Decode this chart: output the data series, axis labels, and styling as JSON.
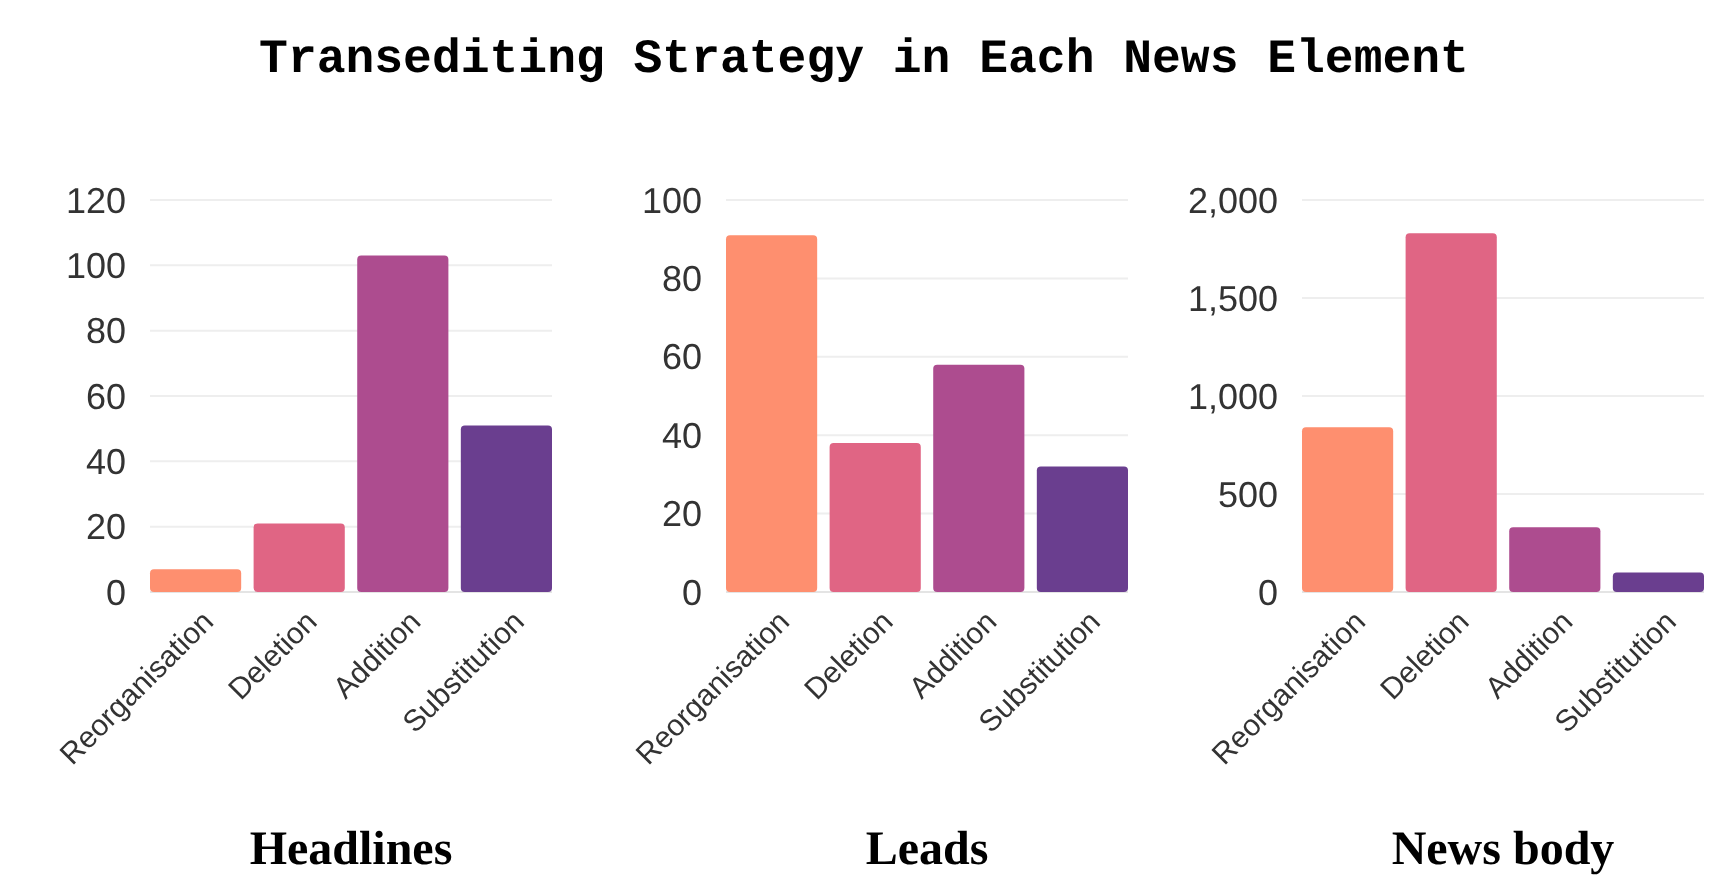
{
  "chart_data": [
    {
      "type": "bar",
      "title": "Transediting Strategy in Each News Element",
      "xlabel": "Headlines",
      "categories": [
        "Reorganisation",
        "Deletion",
        "Addition",
        "Substitution"
      ],
      "values": [
        7,
        21,
        103,
        51
      ],
      "colors": [
        "#fe8f6f",
        "#e06584",
        "#ad4c8f",
        "#6a3e8f"
      ],
      "ylim": [
        0,
        120
      ],
      "yticks": [
        0,
        20,
        40,
        60,
        80,
        100,
        120
      ],
      "grid": "y"
    },
    {
      "type": "bar",
      "xlabel": "Leads",
      "categories": [
        "Reorganisation",
        "Deletion",
        "Addition",
        "Substitution"
      ],
      "values": [
        91,
        38,
        58,
        32
      ],
      "colors": [
        "#fe8f6f",
        "#e06584",
        "#ad4c8f",
        "#6a3e8f"
      ],
      "ylim": [
        0,
        100
      ],
      "yticks": [
        0,
        20,
        40,
        60,
        80,
        100
      ],
      "grid": "y"
    },
    {
      "type": "bar",
      "xlabel": "News body",
      "categories": [
        "Reorganisation",
        "Deletion",
        "Addition",
        "Substitution"
      ],
      "values": [
        840,
        1830,
        330,
        100
      ],
      "colors": [
        "#fe8f6f",
        "#e06584",
        "#ad4c8f",
        "#6a3e8f"
      ],
      "ylim": [
        0,
        2000
      ],
      "yticks": [
        0,
        500,
        {
          "value": 1000,
          "label": "1,000"
        },
        {
          "value": 1500,
          "label": "1,500"
        },
        {
          "value": 2000,
          "label": "2,000"
        }
      ],
      "grid": "y"
    }
  ]
}
